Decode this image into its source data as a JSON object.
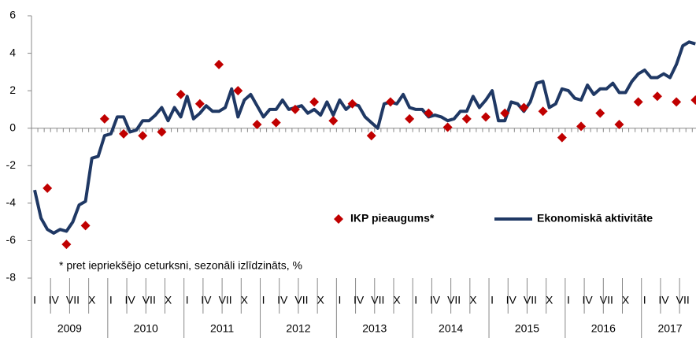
{
  "chart_data": {
    "type": "line",
    "categories": [
      "I",
      null,
      null,
      "IV",
      null,
      null,
      "VII",
      null,
      null,
      "X",
      null,
      null,
      "I",
      null,
      null,
      "IV",
      null,
      null,
      "VII",
      null,
      null,
      "X",
      null,
      null,
      "I",
      null,
      null,
      "IV",
      null,
      null,
      "VII",
      null,
      null,
      "X",
      null,
      null,
      "I",
      null,
      null,
      "IV",
      null,
      null,
      "VII",
      null,
      null,
      "X",
      null,
      null,
      "I",
      null,
      null,
      "IV",
      null,
      null,
      "VII",
      null,
      null,
      "X",
      null,
      null,
      "I",
      null,
      null,
      "IV",
      null,
      null,
      "VII",
      null,
      null,
      "X",
      null,
      null,
      "I",
      null,
      null,
      "IV",
      null,
      null,
      "VII",
      null,
      null,
      "X",
      null,
      null,
      "I",
      null,
      null,
      "IV",
      null,
      null,
      "VII",
      null,
      null,
      "X",
      null,
      null,
      "I",
      null,
      null,
      "IV",
      null,
      null,
      "VII",
      null,
      null
    ],
    "year_labels": [
      "2009",
      "2010",
      "2011",
      "2012",
      "2013",
      "2014",
      "2015",
      "2016",
      "2017"
    ],
    "series": [
      {
        "name": "IKP pieaugums*",
        "type": "scatter",
        "color": "#c00000",
        "values": [
          null,
          null,
          -3.2,
          null,
          null,
          -6.2,
          null,
          null,
          -5.2,
          null,
          null,
          0.5,
          null,
          null,
          -0.3,
          null,
          null,
          -0.4,
          null,
          null,
          -0.2,
          null,
          null,
          1.8,
          null,
          null,
          1.3,
          null,
          null,
          3.4,
          null,
          null,
          2.0,
          null,
          null,
          0.2,
          null,
          null,
          0.3,
          null,
          null,
          1.0,
          null,
          null,
          1.4,
          null,
          null,
          0.4,
          null,
          null,
          1.3,
          null,
          null,
          -0.4,
          null,
          null,
          1.4,
          null,
          null,
          0.5,
          null,
          null,
          0.8,
          null,
          null,
          0.05,
          null,
          null,
          0.5,
          null,
          null,
          0.6,
          null,
          null,
          0.8,
          null,
          null,
          1.1,
          null,
          null,
          0.9,
          null,
          null,
          -0.5,
          null,
          null,
          0.1,
          null,
          null,
          0.8,
          null,
          null,
          0.2,
          null,
          null,
          1.4,
          null,
          null,
          1.7,
          null,
          null,
          1.4,
          null,
          null,
          1.5
        ]
      },
      {
        "name": "Ekonomiskā aktivitāte",
        "type": "line",
        "color": "#1f3864",
        "values": [
          -3.3,
          -4.8,
          -5.4,
          -5.6,
          -5.4,
          -5.5,
          -5.0,
          -4.1,
          -3.9,
          -1.6,
          -1.5,
          -0.4,
          -0.3,
          0.6,
          0.6,
          -0.2,
          -0.1,
          0.4,
          0.4,
          0.7,
          1.1,
          0.4,
          1.1,
          0.6,
          1.7,
          0.5,
          0.8,
          1.2,
          0.9,
          0.9,
          1.1,
          2.1,
          0.6,
          1.5,
          1.8,
          1.2,
          0.6,
          1.0,
          1.0,
          1.5,
          1.0,
          1.1,
          1.2,
          0.8,
          1.0,
          0.7,
          1.4,
          0.7,
          1.5,
          1.0,
          1.3,
          1.2,
          0.6,
          0.3,
          0.0,
          1.3,
          1.4,
          1.3,
          1.8,
          1.1,
          1.0,
          1.0,
          0.6,
          0.7,
          0.6,
          0.4,
          0.5,
          0.9,
          0.9,
          1.7,
          1.1,
          1.5,
          2.0,
          0.4,
          0.4,
          1.4,
          1.3,
          0.9,
          1.4,
          2.4,
          2.5,
          1.1,
          1.3,
          2.1,
          2.0,
          1.6,
          1.5,
          2.3,
          1.8,
          2.1,
          2.1,
          2.4,
          1.9,
          1.9,
          2.5,
          2.9,
          3.1,
          2.7,
          2.7,
          2.9,
          2.7,
          3.4,
          4.4,
          4.6,
          4.5
        ]
      }
    ],
    "note": "* pret iepriekšējo ceturksni, sezonāli izlīdzināts, %",
    "ylim": [
      -8,
      6
    ],
    "yticks": [
      -8,
      -6,
      -4,
      -2,
      0,
      2,
      4,
      6
    ],
    "grid": false
  }
}
